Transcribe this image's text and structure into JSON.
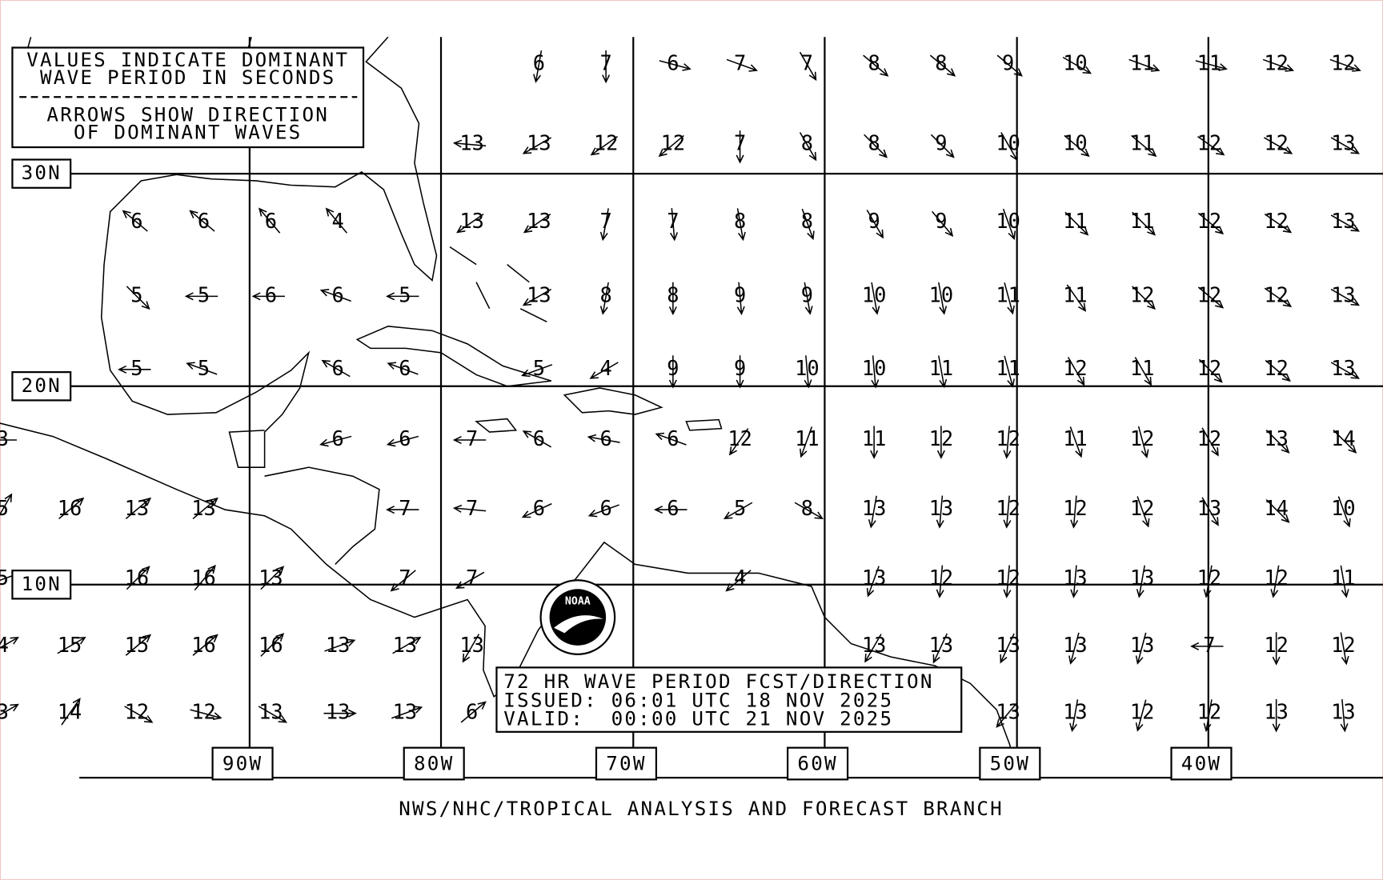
{
  "legend": [
    "VALUES INDICATE DOMINANT",
    "WAVE PERIOD IN SECONDS",
    "ARROWS SHOW DIRECTION",
    "OF DOMINANT WAVES"
  ],
  "latitude_labels": [
    "30N",
    "20N",
    "10N"
  ],
  "longitude_labels": [
    "90W",
    "80W",
    "70W",
    "60W",
    "50W",
    "40W"
  ],
  "issuance": [
    "72 HR WAVE PERIOD FCST/DIRECTION",
    "ISSUED: 06:01 UTC 18 NOV 2025",
    "VALID:  00:00 UTC 21 NOV 2025"
  ],
  "logo_text": "NOAA",
  "footer": "NWS/NHC/TROPICAL ANALYSIS AND FORECAST BRANCH",
  "wave_periods": [
    [
      null,
      null,
      null,
      null,
      null,
      null,
      null,
      null,
      6,
      7,
      6,
      7,
      7,
      8,
      8,
      9,
      10,
      11,
      11,
      12,
      12
    ],
    [
      null,
      null,
      null,
      null,
      null,
      null,
      null,
      13,
      13,
      12,
      12,
      7,
      8,
      8,
      9,
      10,
      10,
      11,
      12,
      12,
      13
    ],
    [
      null,
      null,
      6,
      6,
      6,
      4,
      null,
      13,
      13,
      7,
      7,
      8,
      8,
      9,
      9,
      10,
      11,
      11,
      12,
      12,
      13
    ],
    [
      null,
      null,
      5,
      5,
      6,
      6,
      5,
      null,
      13,
      8,
      8,
      9,
      9,
      10,
      10,
      11,
      11,
      12,
      12,
      12,
      13
    ],
    [
      null,
      null,
      5,
      5,
      null,
      6,
      6,
      null,
      5,
      4,
      9,
      9,
      10,
      10,
      11,
      11,
      12,
      11,
      12,
      12,
      13
    ],
    [
      3,
      null,
      null,
      null,
      null,
      6,
      6,
      7,
      6,
      6,
      6,
      12,
      11,
      11,
      12,
      12,
      11,
      12,
      12,
      13,
      14
    ],
    [
      5,
      16,
      13,
      13,
      null,
      null,
      7,
      7,
      6,
      6,
      6,
      5,
      8,
      13,
      13,
      12,
      12,
      12,
      13,
      14,
      10
    ],
    [
      5,
      null,
      16,
      16,
      13,
      null,
      7,
      7,
      null,
      null,
      null,
      4,
      null,
      13,
      12,
      12,
      13,
      13,
      12,
      12,
      11
    ],
    [
      4,
      15,
      15,
      16,
      16,
      13,
      13,
      13,
      null,
      null,
      null,
      null,
      null,
      13,
      13,
      13,
      13,
      13,
      7,
      12,
      12
    ],
    [
      3,
      14,
      12,
      12,
      13,
      13,
      13,
      6,
      null,
      null,
      null,
      null,
      null,
      null,
      null,
      13,
      13,
      12,
      12,
      13,
      13
    ]
  ],
  "wave_directions": [
    [
      null,
      null,
      null,
      null,
      null,
      null,
      null,
      null,
      100,
      90,
      15,
      20,
      60,
      40,
      40,
      40,
      30,
      20,
      15,
      20,
      20
    ],
    [
      null,
      null,
      null,
      null,
      null,
      null,
      null,
      185,
      150,
      145,
      140,
      90,
      60,
      45,
      45,
      60,
      40,
      40,
      35,
      30,
      30
    ],
    [
      null,
      null,
      220,
      220,
      230,
      230,
      null,
      145,
      145,
      100,
      85,
      80,
      70,
      60,
      50,
      70,
      45,
      45,
      40,
      35,
      30
    ],
    [
      null,
      null,
      45,
      180,
      180,
      200,
      180,
      null,
      150,
      100,
      90,
      85,
      80,
      80,
      80,
      75,
      55,
      45,
      40,
      35,
      30
    ],
    [
      null,
      null,
      180,
      200,
      null,
      210,
      200,
      null,
      160,
      150,
      90,
      90,
      85,
      85,
      80,
      75,
      60,
      60,
      45,
      40,
      30
    ],
    [
      180,
      null,
      null,
      null,
      null,
      165,
      165,
      180,
      210,
      190,
      200,
      125,
      110,
      90,
      90,
      95,
      70,
      75,
      60,
      45,
      45
    ],
    [
      300,
      320,
      320,
      320,
      null,
      null,
      180,
      185,
      155,
      160,
      180,
      150,
      30,
      100,
      95,
      95,
      95,
      70,
      60,
      45,
      70
    ],
    [
      340,
      null,
      315,
      310,
      315,
      null,
      140,
      150,
      null,
      null,
      null,
      140,
      null,
      110,
      95,
      95,
      95,
      100,
      100,
      100,
      80
    ],
    [
      330,
      330,
      320,
      320,
      315,
      340,
      330,
      120,
      null,
      null,
      null,
      null,
      null,
      120,
      115,
      115,
      105,
      105,
      180,
      90,
      80
    ],
    [
      330,
      305,
      30,
      15,
      30,
      0,
      340,
      320,
      null,
      null,
      null,
      null,
      null,
      null,
      null,
      130,
      100,
      105,
      100,
      90,
      85
    ]
  ]
}
